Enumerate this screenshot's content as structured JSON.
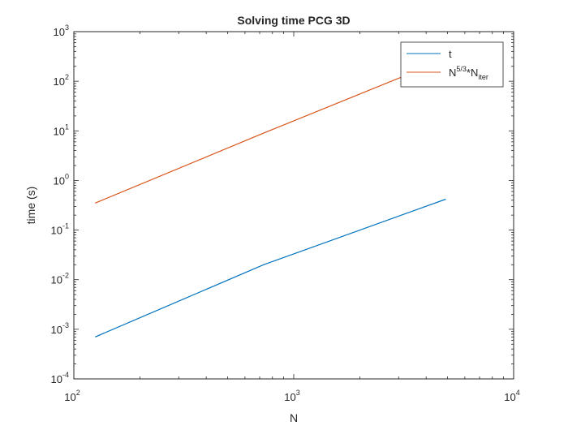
{
  "chart_data": {
    "type": "line",
    "title": "Solving time PCG 3D",
    "xlabel": "N",
    "ylabel": "time (s)",
    "xscale": "log",
    "yscale": "log",
    "xlim": [
      100,
      10000
    ],
    "ylim": [
      0.0001,
      1000
    ],
    "grid": false,
    "legend_position": "top-right",
    "x_ticks": [
      {
        "base": "10",
        "exp": "2",
        "value": 100
      },
      {
        "base": "10",
        "exp": "3",
        "value": 1000
      },
      {
        "base": "10",
        "exp": "4",
        "value": 10000
      }
    ],
    "y_ticks": [
      {
        "base": "10",
        "exp": "-4",
        "value": 0.0001
      },
      {
        "base": "10",
        "exp": "-3",
        "value": 0.001
      },
      {
        "base": "10",
        "exp": "-2",
        "value": 0.01
      },
      {
        "base": "10",
        "exp": "-1",
        "value": 0.1
      },
      {
        "base": "10",
        "exp": "0",
        "value": 1
      },
      {
        "base": "10",
        "exp": "1",
        "value": 10
      },
      {
        "base": "10",
        "exp": "2",
        "value": 100
      },
      {
        "base": "10",
        "exp": "3",
        "value": 1000
      }
    ],
    "series": [
      {
        "name": "t",
        "color": "#0072BD",
        "x": [
          125,
          729,
          4913
        ],
        "y": [
          0.0007,
          0.02,
          0.42
        ]
      },
      {
        "name": "N^{5/3}*N_{iter}",
        "name_parts": {
          "base": "N",
          "sup": "5/3",
          "mid": "*N",
          "sub": "iter"
        },
        "color": "#D95319",
        "x": [
          125,
          729,
          4913
        ],
        "y": [
          0.35,
          9,
          280
        ]
      }
    ]
  }
}
